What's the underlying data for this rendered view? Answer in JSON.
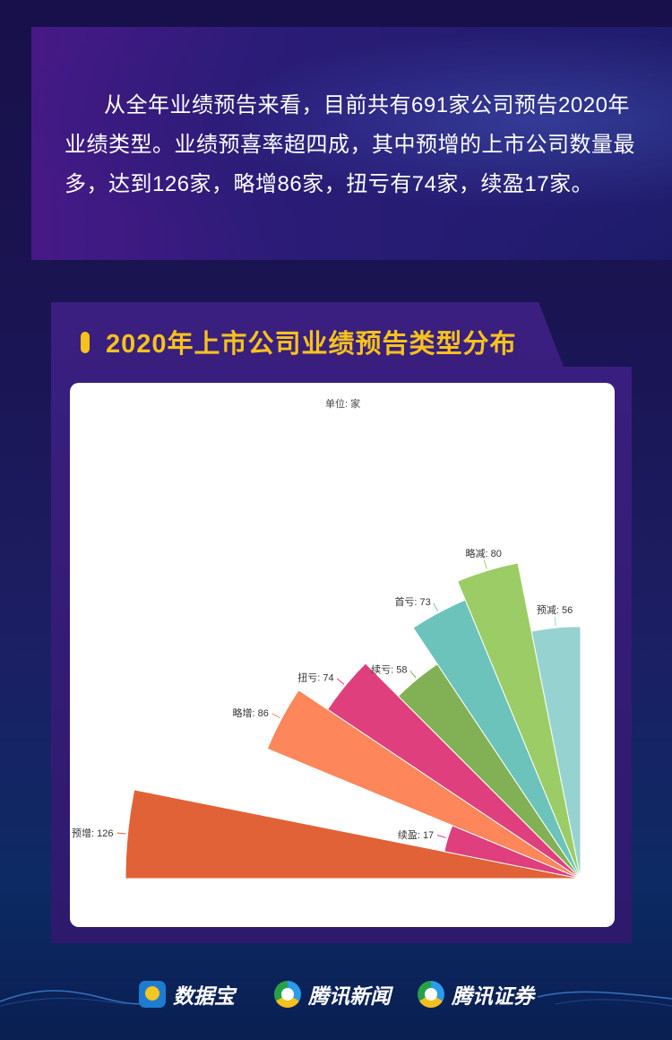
{
  "intro_text": "从全年业绩预告来看，目前共有691家公司预告2020年业绩类型。业绩预喜率超四成，其中预增的上市公司数量最多，达到126家，略增86家，扭亏有74家，续盈17家。",
  "chart_data": {
    "type": "pie",
    "variant": "nightingale-rose-quarter",
    "title": "2020年上市公司业绩预告类型分布",
    "unit_label": "单位: 家",
    "categories": [
      "预增",
      "续盈",
      "略增",
      "扭亏",
      "续亏",
      "首亏",
      "略减",
      "预减"
    ],
    "values": [
      126,
      17,
      86,
      74,
      58,
      73,
      80,
      56
    ],
    "labels": [
      "预增: 126",
      "续盈: 17",
      "略增: 86",
      "扭亏: 74",
      "续亏: 58",
      "首亏: 73",
      "略减: 80",
      "预减: 56"
    ],
    "colors": [
      "#e06236",
      "#df3f7d",
      "#fd865a",
      "#df3f7d",
      "#82b055",
      "#6cc3bb",
      "#9ccc65",
      "#96d3d0"
    ]
  },
  "footer": {
    "brands": [
      "数据宝",
      "腾讯新闻",
      "腾讯证券"
    ]
  }
}
